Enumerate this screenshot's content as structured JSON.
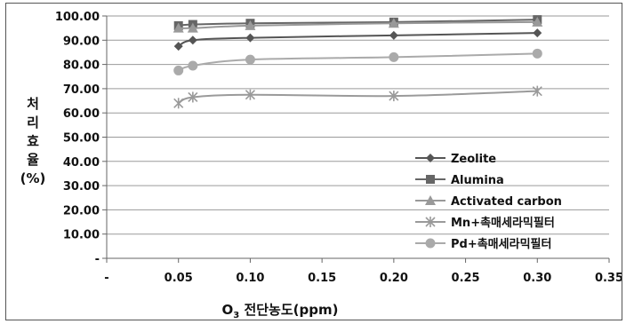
{
  "chart_data": {
    "type": "line",
    "xlabel_main": "O",
    "xlabel_sub": "3",
    "xlabel_rest": " 전단농도(ppm)",
    "ylabel_lines": [
      "처",
      "리",
      "효",
      "율",
      "(%)"
    ],
    "x_ticks": [
      "-",
      "0.05",
      "0.10",
      "0.15",
      "0.20",
      "0.25",
      "0.30",
      "0.35"
    ],
    "y_ticks": [
      "-",
      "10.00",
      "20.00",
      "30.00",
      "40.00",
      "50.00",
      "60.00",
      "70.00",
      "80.00",
      "90.00",
      "100.00"
    ],
    "xlim": [
      0,
      0.35
    ],
    "ylim": [
      0,
      100
    ],
    "x": [
      0.05,
      0.06,
      0.1,
      0.2,
      0.3
    ],
    "grid": "horizontal",
    "legend_position": "inside-bottom-right",
    "series": [
      {
        "name": "Zeolite",
        "marker": "diamond",
        "color": "#555555",
        "values": [
          87.5,
          90.0,
          91.0,
          92.0,
          93.0
        ]
      },
      {
        "name": "Alumina",
        "marker": "square",
        "color": "#666666",
        "values": [
          96.0,
          96.5,
          97.0,
          97.5,
          98.5
        ]
      },
      {
        "name": "Activated carbon",
        "marker": "triangle",
        "color": "#999999",
        "values": [
          95.0,
          95.0,
          96.0,
          97.0,
          97.5
        ]
      },
      {
        "name": "Mn+촉매세라믹필터",
        "marker": "star",
        "color": "#9a9a9a",
        "values": [
          64.0,
          66.5,
          67.5,
          67.0,
          69.0
        ]
      },
      {
        "name": "Pd+촉매세라믹필터",
        "marker": "circle",
        "color": "#aaaaaa",
        "values": [
          77.5,
          79.5,
          82.0,
          83.0,
          84.5
        ]
      }
    ]
  }
}
